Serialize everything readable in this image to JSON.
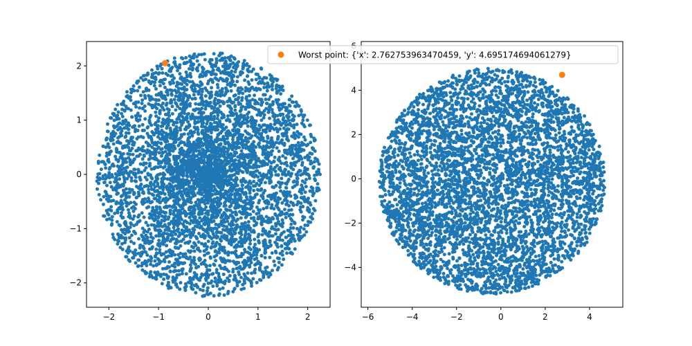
{
  "chart_data": [
    {
      "type": "scatter",
      "title": "",
      "xlabel": "",
      "ylabel": "",
      "xlim": [
        -2.45,
        2.45
      ],
      "ylim": [
        -2.45,
        2.45
      ],
      "xticks": [
        -2,
        -1,
        0,
        1,
        2
      ],
      "yticks": [
        -2,
        -1,
        0,
        1,
        2
      ],
      "grid": false,
      "cloud": {
        "description_shape": "disk, dense core",
        "center": [
          0,
          0
        ],
        "radius": 2.25,
        "count": 5000,
        "color": "#1f77b4",
        "distribution": "centered"
      },
      "highlight": {
        "x": -0.87,
        "y": 2.05,
        "color": "#ff7f0e"
      }
    },
    {
      "type": "scatter",
      "title": "",
      "xlabel": "",
      "ylabel": "",
      "xlim": [
        -6.3,
        5.5
      ],
      "ylim": [
        -5.8,
        6.2
      ],
      "xticks": [
        -6,
        -4,
        -2,
        0,
        2,
        4
      ],
      "yticks": [
        -4,
        -2,
        0,
        2,
        4,
        6
      ],
      "grid": false,
      "cloud": {
        "description_shape": "disk, uniform",
        "center": [
          -0.4,
          -0.1
        ],
        "radius": 5.1,
        "count": 5000,
        "color": "#1f77b4",
        "distribution": "uniform"
      },
      "highlight": {
        "x": 2.762753963470459,
        "y": 4.695174694061279,
        "color": "#ff7f0e"
      }
    }
  ],
  "legend": {
    "label": "Worst point: {'x': 2.762753963470459, 'y': 4.695174694061279}",
    "marker_color": "#ff7f0e",
    "placement": "top-right"
  },
  "colors": {
    "series": "#1f77b4",
    "highlight": "#ff7f0e",
    "axes": "#000000",
    "background": "#ffffff"
  }
}
